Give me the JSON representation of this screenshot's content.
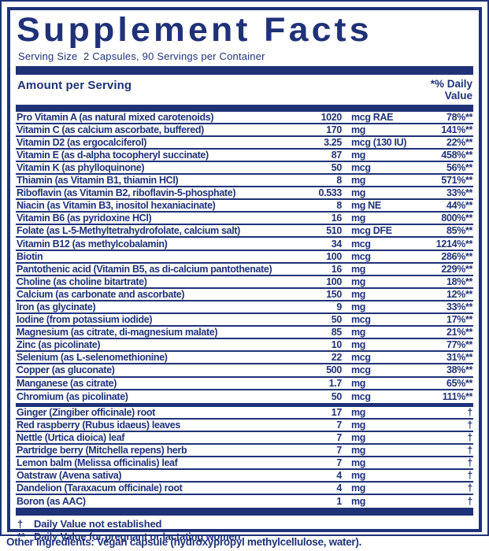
{
  "colors": {
    "navy": "#1f3278"
  },
  "label": {
    "title": "Supplement Facts",
    "serving_info": "Serving Size  2 Capsules, 90 Servings per Container",
    "table_header": {
      "amount_label": "Amount per Serving",
      "dv_label_line1": "*% Daily",
      "dv_label_line2": "Value"
    },
    "nutrients": [
      {
        "name": "Pro Vitamin A (as natural mixed carotenoids)",
        "amount": "1020",
        "unit": "mcg RAE",
        "dv": "78%**"
      },
      {
        "name": "Vitamin C (as calcium ascorbate, buffered)",
        "amount": "170",
        "unit": "mg",
        "dv": "141%**"
      },
      {
        "name": "Vitamin D2 (as ergocalciferol)",
        "amount": "3.25",
        "unit": "mcg (130 IU)",
        "dv": "22%**"
      },
      {
        "name": "Vitamin E (as d-alpha tocopheryl succinate)",
        "amount": "87",
        "unit": "mg",
        "dv": "458%**"
      },
      {
        "name": "Vitamin K (as phylloquinone)",
        "amount": "50",
        "unit": "mcg",
        "dv": "56%**"
      },
      {
        "name": "Thiamin (as Vitamin B1, thiamin HCl)",
        "amount": "8",
        "unit": "mg",
        "dv": "571%**"
      },
      {
        "name": "Riboflavin (as Vitamin B2, riboflavin-5-phosphate)",
        "amount": "0.533",
        "unit": "mg",
        "dv": "33%**"
      },
      {
        "name": "Niacin (as Vitamin B3, inositol hexaniacinate)",
        "amount": "8",
        "unit": "mg NE",
        "dv": "44%**"
      },
      {
        "name": "Vitamin B6 (as pyridoxine HCl)",
        "amount": "16",
        "unit": "mg",
        "dv": "800%**"
      },
      {
        "name": "Folate (as L-5-Methyltetrahydrofolate, calcium salt)",
        "amount": "510",
        "unit": "mcg DFE",
        "dv": "85%**"
      },
      {
        "name": "Vitamin B12 (as methylcobalamin)",
        "amount": "34",
        "unit": "mcg",
        "dv": "1214%**"
      },
      {
        "name": "Biotin",
        "amount": "100",
        "unit": "mcg",
        "dv": "286%**"
      },
      {
        "name": "Pantothenic acid (Vitamin B5, as di-calcium pantothenate)",
        "amount": "16",
        "unit": "mg",
        "dv": "229%**"
      },
      {
        "name": "Choline (as choline bitartrate)",
        "amount": "100",
        "unit": "mg",
        "dv": "18%**"
      },
      {
        "name": "Calcium (as carbonate and ascorbate)",
        "amount": "150",
        "unit": "mg",
        "dv": "12%**"
      },
      {
        "name": "Iron (as glycinate)",
        "amount": "9",
        "unit": "mg",
        "dv": "33%**"
      },
      {
        "name": "Iodine (from potassium iodide)",
        "amount": "50",
        "unit": "mcg",
        "dv": "17%**"
      },
      {
        "name": "Magnesium (as citrate, di-magnesium malate)",
        "amount": "85",
        "unit": "mg",
        "dv": "21%**"
      },
      {
        "name": "Zinc (as picolinate)",
        "amount": "10",
        "unit": "mg",
        "dv": "77%**"
      },
      {
        "name": "Selenium (as L-selenomethionine)",
        "amount": "22",
        "unit": "mcg",
        "dv": "31%**"
      },
      {
        "name": "Copper (as gluconate)",
        "amount": "500",
        "unit": "mcg",
        "dv": "38%**"
      },
      {
        "name": "Manganese (as citrate)",
        "amount": "1.7",
        "unit": "mg",
        "dv": "65%**"
      },
      {
        "name": "Chromium (as picolinate)",
        "amount": "50",
        "unit": "mcg",
        "dv": "111%**"
      }
    ],
    "botanicals": [
      {
        "name": "Ginger (Zingiber officinale) root",
        "amount": "17",
        "unit": "mg",
        "dv": "†"
      },
      {
        "name": "Red raspberry (Rubus idaeus) leaves",
        "amount": "7",
        "unit": "mg",
        "dv": "†"
      },
      {
        "name": "Nettle (Urtica dioica) leaf",
        "amount": "7",
        "unit": "mg",
        "dv": "†"
      },
      {
        "name": "Partridge berry (Mitchella repens) herb",
        "amount": "7",
        "unit": "mg",
        "dv": "†"
      },
      {
        "name": "Lemon balm (Melissa officinalis) leaf",
        "amount": "7",
        "unit": "mg",
        "dv": "†"
      },
      {
        "name": "Oatstraw (Avena sativa)",
        "amount": "4",
        "unit": "mg",
        "dv": "†"
      },
      {
        "name": "Dandelion (Taraxacum officinale) root",
        "amount": "4",
        "unit": "mg",
        "dv": "†"
      },
      {
        "name": "Boron (as AAC)",
        "amount": "1",
        "unit": "mg",
        "dv": "†"
      }
    ],
    "footnotes": [
      {
        "marker": "†",
        "text": "Daily Value not established"
      },
      {
        "marker": "**",
        "text": "Daily Value for pregnant or lactating women"
      }
    ],
    "other_ingredients": "Other ingredients: Vegan capsule (hydroxypropyl methylcellulose, water)."
  }
}
